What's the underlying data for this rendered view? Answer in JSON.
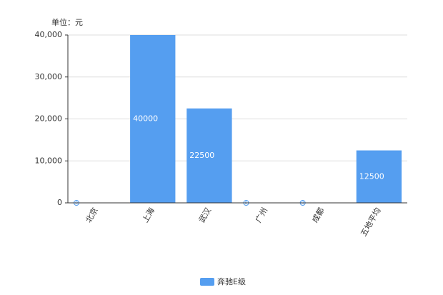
{
  "chart_data": {
    "type": "bar",
    "y_unit_label": "单位：元",
    "categories": [
      "北京",
      "上海",
      "武汉",
      "广州",
      "成都",
      "五地平均"
    ],
    "series": [
      {
        "name": "奔驰E级",
        "color": "#559ef0",
        "values": [
          0,
          40000,
          22500,
          0,
          0,
          12500
        ]
      }
    ],
    "ylim": [
      0,
      40000
    ],
    "yticks": [
      0,
      {
        "value": 10000,
        "label": "10,000"
      },
      {
        "value": 20000,
        "label": "20,000"
      },
      {
        "value": 30000,
        "label": "30,000"
      },
      {
        "value": 40000,
        "label": "40,000"
      }
    ],
    "grid": true
  }
}
